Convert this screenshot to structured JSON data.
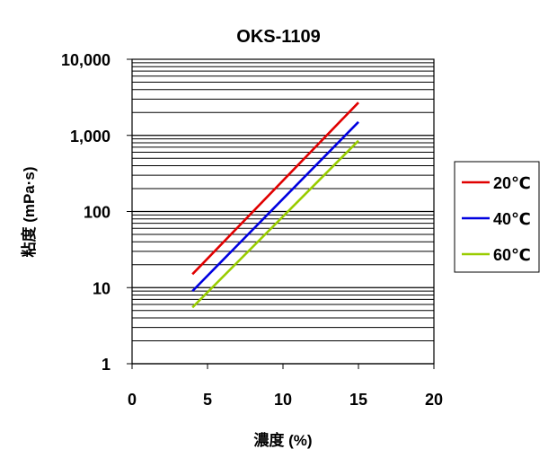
{
  "chart_data": {
    "type": "line",
    "title": "OKS-1109",
    "xlabel": "濃度 (%)",
    "ylabel": "粘度 (mPa·s)",
    "x_scale": "linear",
    "y_scale": "log",
    "xlim": [
      0,
      20
    ],
    "ylim": [
      1,
      10000
    ],
    "x_ticks": [
      "0",
      "5",
      "10",
      "15",
      "20"
    ],
    "y_ticks": [
      "1",
      "10",
      "100",
      "1,000",
      "10,000"
    ],
    "grid": "horizontal",
    "legend_position": "right",
    "series": [
      {
        "name": "20℃",
        "color": "#e00000",
        "x": [
          4,
          15
        ],
        "y": [
          15,
          2700
        ]
      },
      {
        "name": "40℃",
        "color": "#0000e0",
        "x": [
          4,
          15
        ],
        "y": [
          9,
          1500
        ]
      },
      {
        "name": "60℃",
        "color": "#99cc00",
        "x": [
          4,
          15
        ],
        "y": [
          5.5,
          850
        ]
      }
    ]
  }
}
